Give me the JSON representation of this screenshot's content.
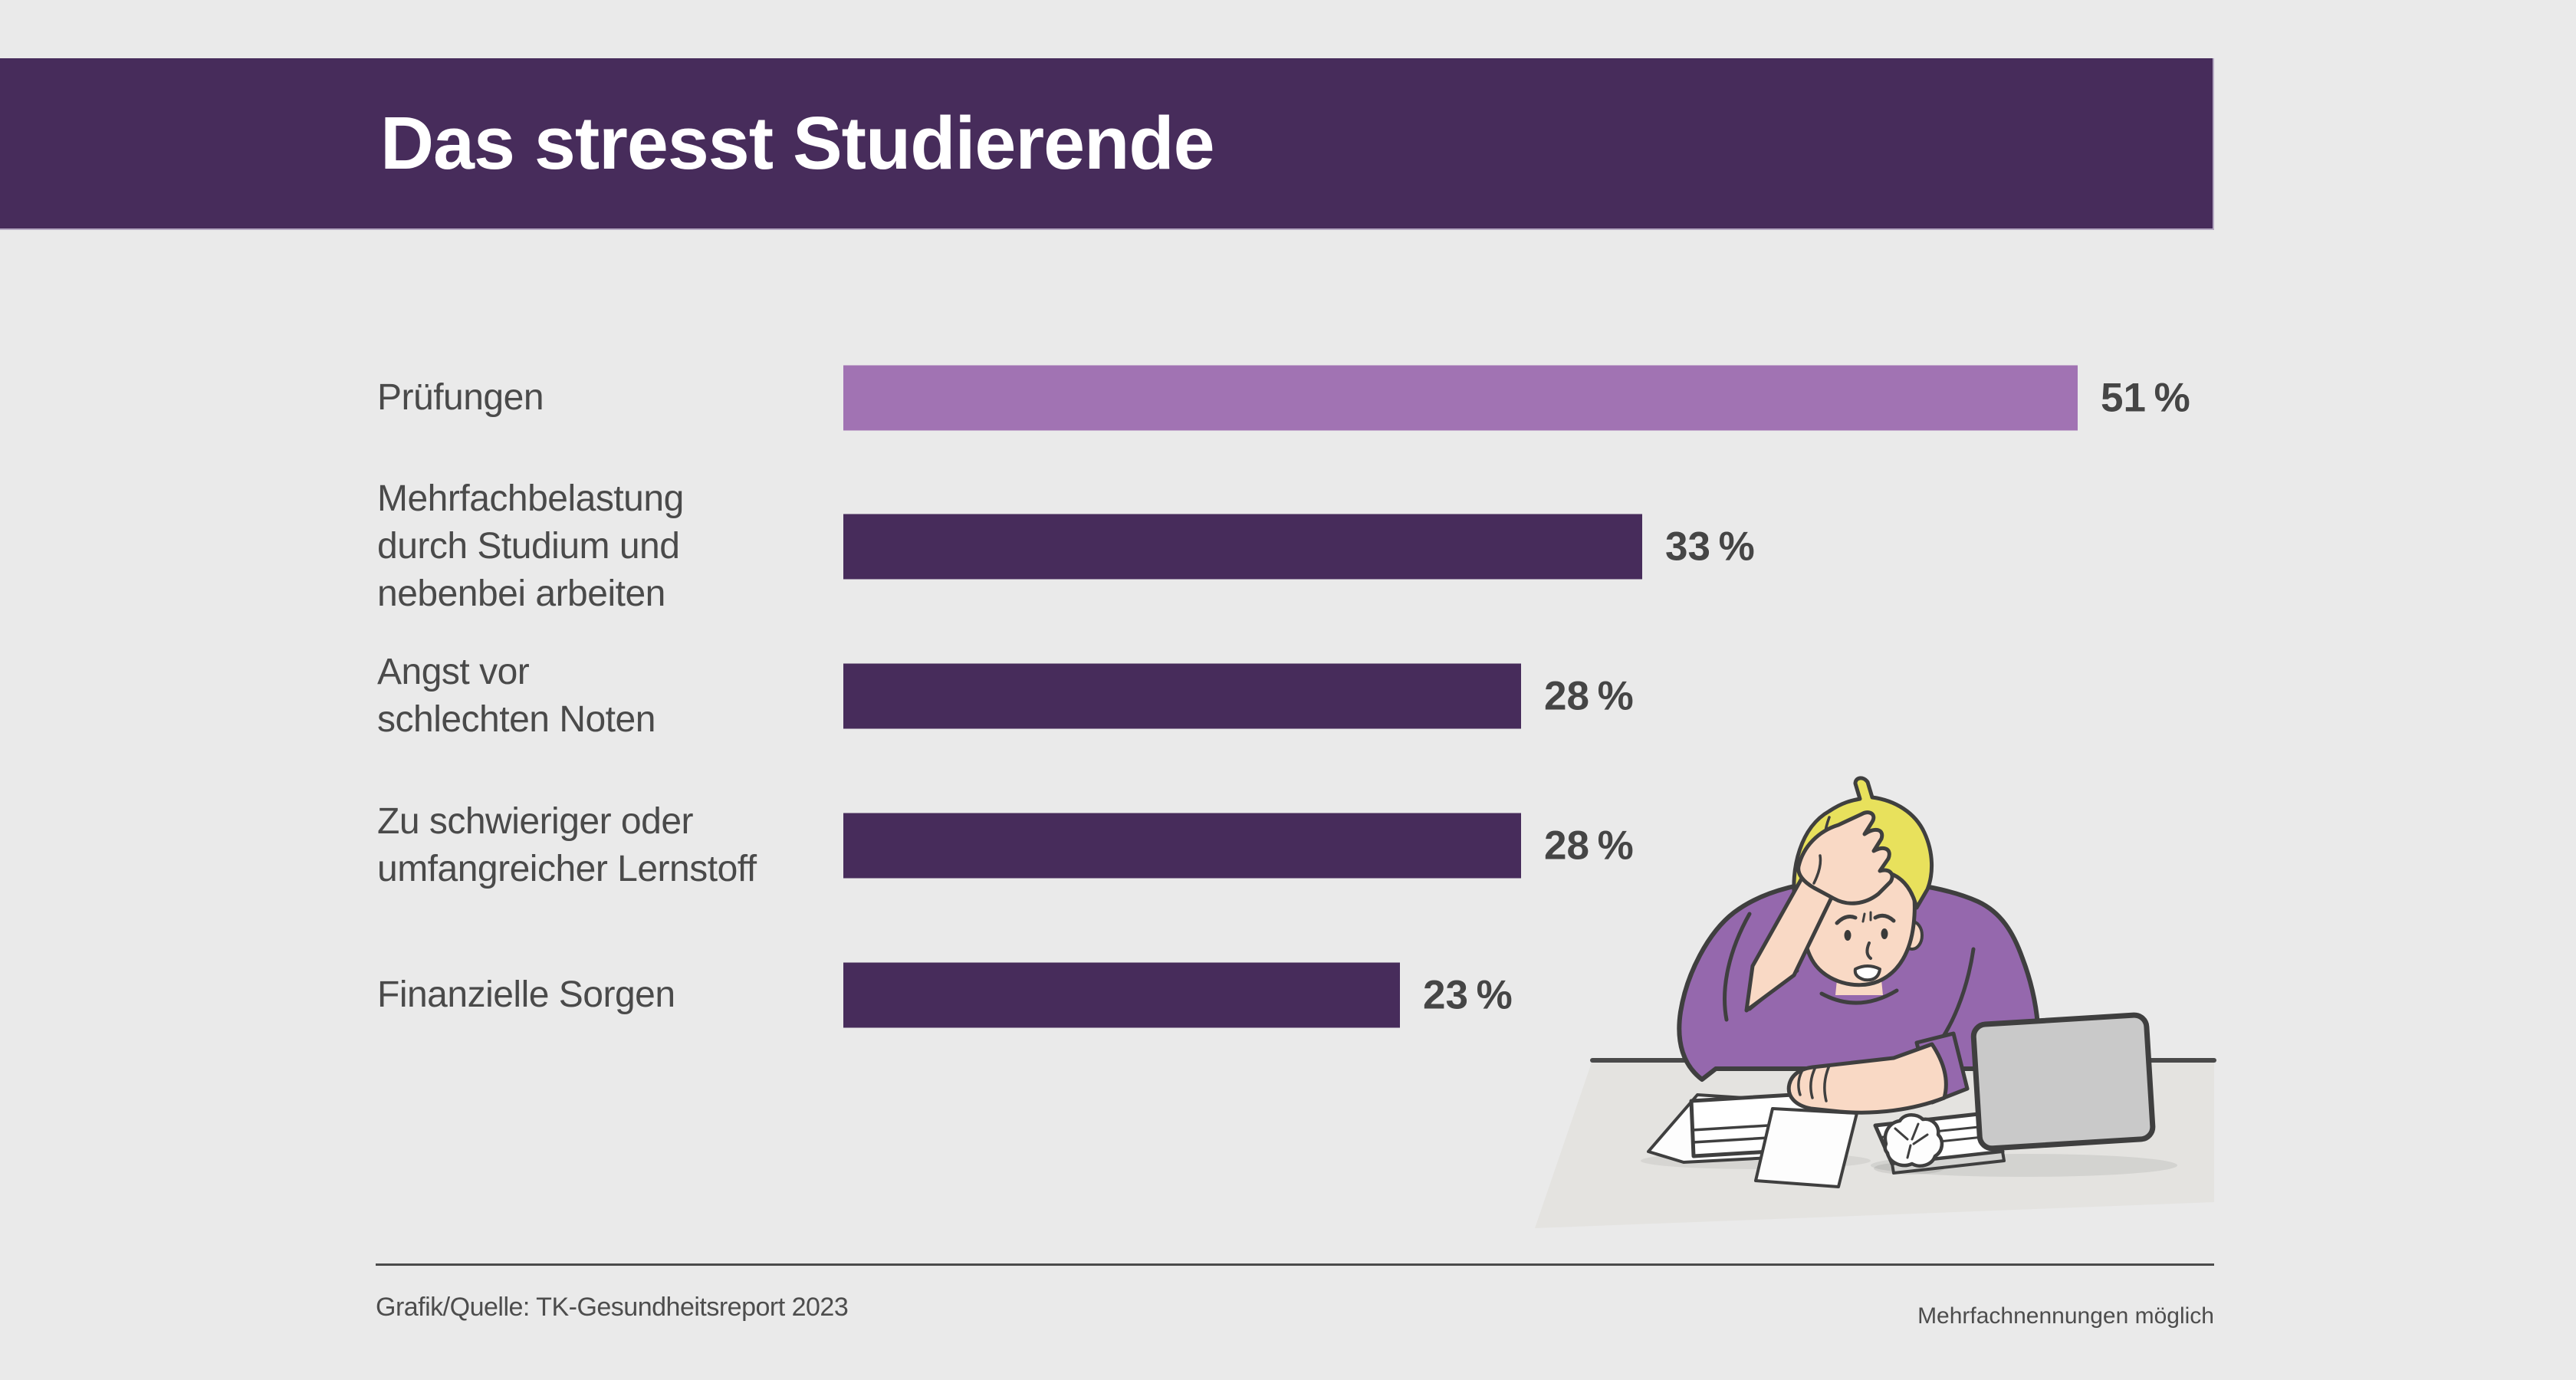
{
  "header": {
    "title": "Das stresst Studierende",
    "background": "#472c5b",
    "text_color": "#ffffff"
  },
  "chart_data": {
    "type": "bar",
    "orientation": "horizontal",
    "title": "Das stresst Studierende",
    "categories": [
      "Prüfungen",
      "Mehrfachbelastung durch Studium und nebenbei arbeiten",
      "Angst vor schlechten Noten",
      "Zu schwieriger oder umfangreicher Lernstoff",
      "Finanzielle Sorgen"
    ],
    "category_lines": [
      [
        "Prüfungen"
      ],
      [
        "Mehrfachbelastung",
        "durch Studium und",
        "nebenbei arbeiten"
      ],
      [
        "Angst vor",
        "schlechten Noten"
      ],
      [
        "Zu schwieriger oder",
        "umfangreicher Lernstoff"
      ],
      [
        "Finanzielle Sorgen"
      ]
    ],
    "values": [
      51,
      33,
      28,
      28,
      23
    ],
    "value_labels": [
      "51 %",
      "33 %",
      "28 %",
      "28 %",
      "23 %"
    ],
    "bar_colors": [
      "#a173b3",
      "#472c5b",
      "#472c5b",
      "#472c5b",
      "#472c5b"
    ],
    "unit": "%",
    "xlim": [
      0,
      56.6
    ],
    "grid": false,
    "legend": null,
    "note": "Mehrfachnennungen möglich"
  },
  "footer": {
    "source": "Grafik/Quelle: TK-Gesundheitsreport 2023",
    "note": "Mehrfachnennungen möglich"
  },
  "colors": {
    "background": "#eaeaea",
    "accent_dark": "#472c5b",
    "accent_light": "#a173b3",
    "text": "#4a4a4a",
    "value_text": "#454545",
    "sweater": "#9568ad",
    "skin": "#f9d9c5",
    "hair": "#e8e15c",
    "desk": "#e4e3e0",
    "outline": "#3f3f3f"
  },
  "illustration": {
    "name": "stressed-student-at-laptop",
    "description": "Worried student with hand on head sitting at a desk with laptop, books, papers and a crumpled paper ball"
  }
}
